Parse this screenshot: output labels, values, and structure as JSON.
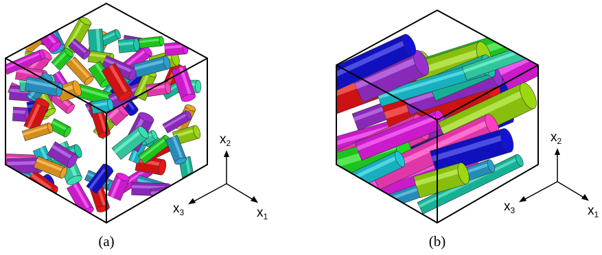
{
  "panels": [
    {
      "caption": "(a)",
      "description": "short fibers",
      "axes": {
        "x1": "x",
        "x1_sub": "1",
        "x2": "x",
        "x2_sub": "2",
        "x3": "x",
        "x3_sub": "3"
      }
    },
    {
      "caption": "(b)",
      "description": "long fibers",
      "axes": {
        "x1": "x",
        "x1_sub": "1",
        "x2": "x",
        "x2_sub": "2",
        "x3": "x",
        "x3_sub": "3"
      }
    }
  ],
  "colors": {
    "magenta": "#e51ee5",
    "purple": "#9a2fd0",
    "blue": "#1212d8",
    "cyan": "#1ac8d8",
    "teal": "#19c9a8",
    "green": "#22dd22",
    "lime": "#9bd80f",
    "orange": "#f0a020",
    "red": "#e81515",
    "steel": "#2a9fd0",
    "mint": "#36e0b0",
    "pink": "#ff3fbf"
  }
}
